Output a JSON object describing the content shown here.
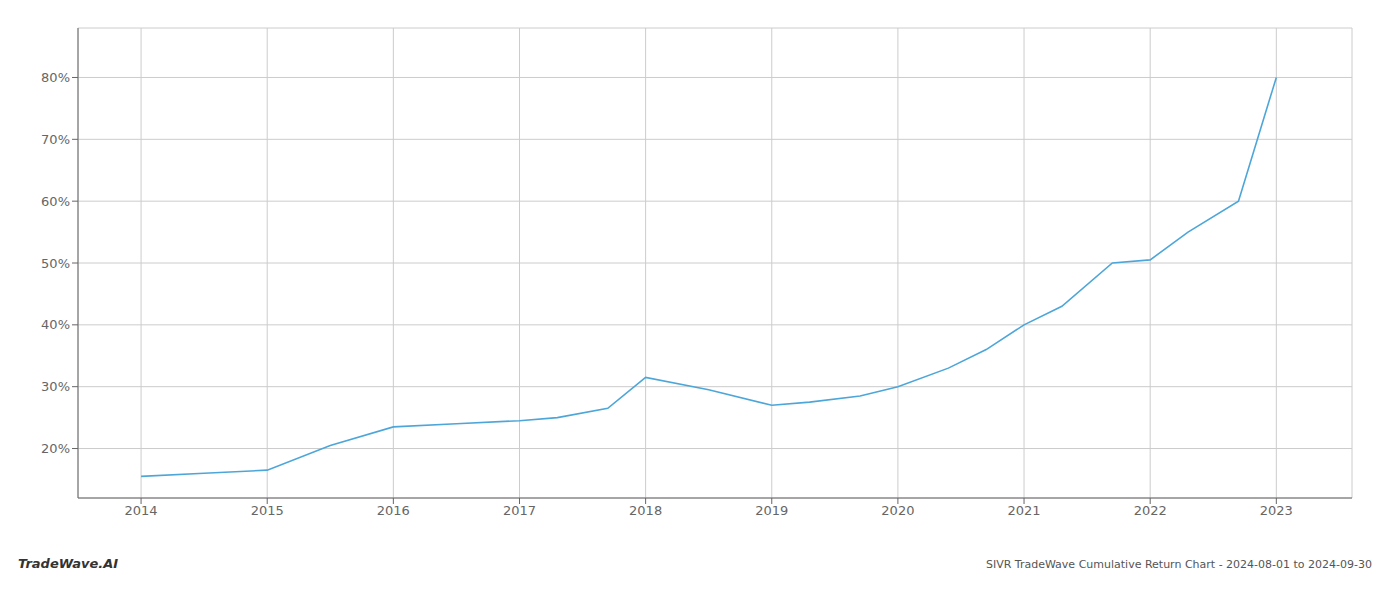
{
  "chart_data": {
    "type": "line",
    "title": "SIVR TradeWave Cumulative Return Chart - 2024-08-01 to 2024-09-30",
    "annotations": [
      "TradeWave.AI"
    ],
    "x": [
      2014.0,
      2014.5,
      2015.0,
      2015.5,
      2016.0,
      2016.5,
      2017.0,
      2017.3,
      2017.7,
      2018.0,
      2018.5,
      2019.0,
      2019.3,
      2019.7,
      2020.0,
      2020.4,
      2020.7,
      2021.0,
      2021.3,
      2021.7,
      2022.0,
      2022.3,
      2022.7,
      2023.0
    ],
    "values": [
      15.5,
      16.0,
      16.5,
      20.5,
      23.5,
      24.0,
      24.5,
      25.0,
      26.5,
      31.5,
      29.5,
      27.0,
      27.5,
      28.5,
      30.0,
      33.0,
      36.0,
      40.0,
      43.0,
      50.0,
      50.5,
      55.0,
      60.0,
      80.0
    ],
    "color": "#4da6d9",
    "xlim": [
      2013.5,
      2023.6
    ],
    "ylim": [
      12,
      88
    ],
    "xticks": [
      2014,
      2015,
      2016,
      2017,
      2018,
      2019,
      2020,
      2021,
      2022,
      2023
    ],
    "yticks": [
      {
        "value": 20,
        "label": "20%"
      },
      {
        "value": 30,
        "label": "30%"
      },
      {
        "value": 40,
        "label": "40%"
      },
      {
        "value": 50,
        "label": "50%"
      },
      {
        "value": 60,
        "label": "60%"
      },
      {
        "value": 70,
        "label": "70%"
      },
      {
        "value": 80,
        "label": "80%"
      }
    ],
    "grid": true
  }
}
